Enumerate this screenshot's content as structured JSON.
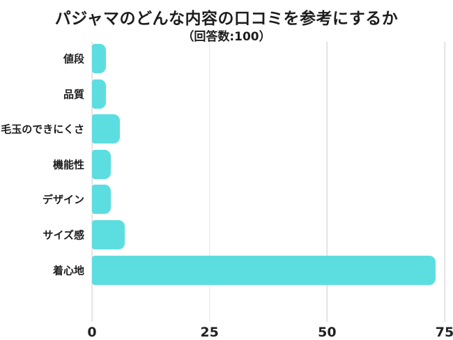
{
  "header": {
    "title": "パジャマのどんな内容の口コミを参考にするか",
    "subtitle": "（回答数:100）"
  },
  "chart_data": {
    "type": "bar",
    "orientation": "horizontal",
    "title": "パジャマのどんな内容の口コミを参考にするか",
    "subtitle": "（回答数:100）",
    "total_responses": 100,
    "categories": [
      "値段",
      "品質",
      "毛玉のできにくさ",
      "機能性",
      "デザイン",
      "サイズ感",
      "着心地"
    ],
    "values": [
      3,
      3,
      6,
      4,
      4,
      7,
      73
    ],
    "xlabel": "",
    "ylabel": "",
    "xlim": [
      0,
      75
    ],
    "x_ticks": [
      0,
      25,
      50,
      75
    ],
    "grid": true,
    "legend": "none",
    "colors": {
      "bar": "#5CDEE0",
      "gridline": "#e3e3e3",
      "text": "#1d1d1d",
      "background": "#ffffff"
    }
  }
}
